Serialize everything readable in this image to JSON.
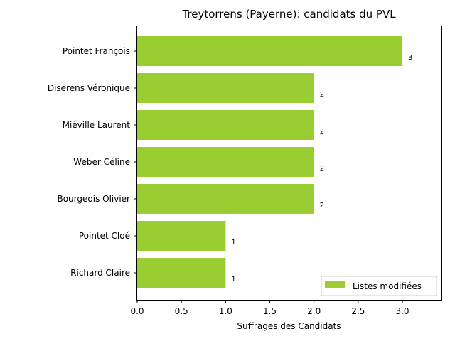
{
  "chart_data": {
    "type": "bar",
    "orientation": "horizontal",
    "title": "Treytorrens (Payerne): candidats du PVL",
    "xlabel": "Suffrages des Candidats",
    "ylabel": "",
    "categories": [
      "Pointet François",
      "Diserens Véronique",
      "Miéville Laurent",
      "Weber Céline",
      "Bourgeois Olivier",
      "Pointet Cloé",
      "Richard Claire"
    ],
    "series": [
      {
        "name": "Listes modifiées",
        "values": [
          3,
          2,
          2,
          2,
          2,
          1,
          1
        ],
        "color": "#9acd32"
      }
    ],
    "data_labels": [
      "3",
      "2",
      "2",
      "2",
      "2",
      "1",
      "1"
    ],
    "x_ticks": [
      "0.0",
      "0.5",
      "1.0",
      "1.5",
      "2.0",
      "2.5",
      "3.0"
    ],
    "xlim": [
      0,
      3.45
    ],
    "grid": false,
    "legend_position": "lower-right"
  }
}
